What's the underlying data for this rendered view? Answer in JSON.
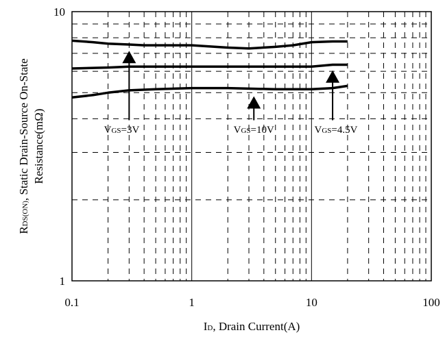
{
  "chart_data": {
    "type": "line",
    "x_scale": "log",
    "y_scale": "log",
    "xlim": [
      0.1,
      100
    ],
    "ylim": [
      1,
      10
    ],
    "grid": true,
    "x_ticks": [
      {
        "value": 0.1,
        "label": "0.1"
      },
      {
        "value": 1,
        "label": "1"
      },
      {
        "value": 10,
        "label": "10"
      },
      {
        "value": 100,
        "label": "100"
      }
    ],
    "y_ticks": [
      {
        "value": 1,
        "label": "1"
      },
      {
        "value": 10,
        "label": "10"
      }
    ],
    "xlabel": {
      "main": "I",
      "sub": "D",
      "rest": ", Drain Current(A)"
    },
    "ylabel": {
      "line1_main": "R",
      "line1_sub": "DS(ON)",
      "line1_rest": ", Static Drain-Source On-State",
      "line2": "Resistance(mΩ)"
    },
    "series": [
      {
        "label_main": "V",
        "label_sub": "GS",
        "label_rest": "=3V",
        "x": [
          0.1,
          0.15,
          0.2,
          0.3,
          0.4,
          0.5,
          1,
          2,
          3,
          5,
          7,
          10,
          15,
          20
        ],
        "y": [
          7.8,
          7.7,
          7.6,
          7.55,
          7.5,
          7.5,
          7.5,
          7.35,
          7.3,
          7.4,
          7.5,
          7.7,
          7.75,
          7.75
        ]
      },
      {
        "label_main": "V",
        "label_sub": "GS",
        "label_rest": "=4.5V",
        "x": [
          0.1,
          0.2,
          0.3,
          0.5,
          1,
          2,
          5,
          10,
          15,
          20
        ],
        "y": [
          6.15,
          6.2,
          6.25,
          6.25,
          6.25,
          6.25,
          6.25,
          6.25,
          6.35,
          6.35
        ]
      },
      {
        "label_main": "V",
        "label_sub": "GS",
        "label_rest": "=10V",
        "x": [
          0.1,
          0.15,
          0.2,
          0.3,
          0.5,
          1,
          2,
          5,
          10,
          15,
          20
        ],
        "y": [
          4.8,
          4.9,
          5.0,
          5.1,
          5.15,
          5.2,
          5.2,
          5.15,
          5.15,
          5.2,
          5.3
        ]
      }
    ],
    "annotations": [
      {
        "series": 0,
        "arrow_x": 0.3,
        "arrow_tip_y": 7.15,
        "arrow_tail_y": 3.95,
        "text_x": 0.26,
        "text_y": 3.55
      },
      {
        "series": 2,
        "arrow_x": 3.3,
        "arrow_tip_y": 4.85,
        "arrow_tail_y": 3.95,
        "text_x": 3.3,
        "text_y": 3.55
      },
      {
        "series": 1,
        "arrow_x": 15,
        "arrow_tip_y": 6.05,
        "arrow_tail_y": 3.95,
        "text_x": 16,
        "text_y": 3.55
      }
    ]
  }
}
